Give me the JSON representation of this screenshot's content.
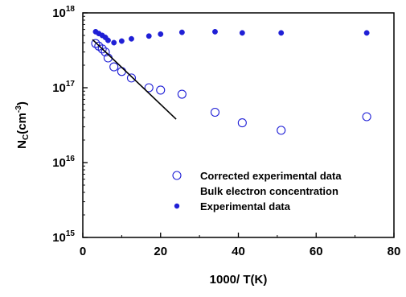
{
  "chart_data": {
    "type": "scatter",
    "title": "",
    "xlabel": "1000/ T(K)",
    "ylabel": {
      "base": "N",
      "sub": "C",
      "unit_prefix": "(cm",
      "unit_sup": "-3",
      "unit_suffix": ")"
    },
    "xlim": [
      0,
      80
    ],
    "ylim": [
      1000000000000000.0,
      1e+18
    ],
    "yscale": "log",
    "x_ticks": [
      0,
      20,
      40,
      60,
      80
    ],
    "y_ticks": [
      {
        "value": 1000000000000000.0,
        "base": "10",
        "exp": "15"
      },
      {
        "value": 1e+16,
        "base": "10",
        "exp": "16"
      },
      {
        "value": 1e+17,
        "base": "10",
        "exp": "17"
      },
      {
        "value": 1e+18,
        "base": "10",
        "exp": "18"
      }
    ],
    "grid": false,
    "legend_position": "bottom-right",
    "series": [
      {
        "name": "Corrected experimental data",
        "marker": "open-circle",
        "color": "#1f1fd6",
        "points": [
          [
            3.3,
            3.9e+17
          ],
          [
            4.1,
            3.6e+17
          ],
          [
            5.0,
            3.3e+17
          ],
          [
            5.8,
            3e+17
          ],
          [
            6.5,
            2.5e+17
          ],
          [
            8.0,
            1.9e+17
          ],
          [
            10.0,
            1.65e+17
          ],
          [
            12.5,
            1.35e+17
          ],
          [
            17.0,
            1e+17
          ],
          [
            20.0,
            9.3e+16
          ],
          [
            25.5,
            8.2e+16
          ],
          [
            34.0,
            4.7e+16
          ],
          [
            41.0,
            3.4e+16
          ],
          [
            51.0,
            2.7e+16
          ],
          [
            73.0,
            4.1e+16
          ]
        ]
      },
      {
        "name": "Bulk electron concentration",
        "marker": "line",
        "color": "#000000",
        "points": [
          [
            2.5,
            4.4e+17
          ],
          [
            24.0,
            3.8e+16
          ]
        ]
      },
      {
        "name": "Experimental data",
        "marker": "filled-circle",
        "color": "#1f1fd6",
        "points": [
          [
            3.3,
            5.6e+17
          ],
          [
            4.1,
            5.3e+17
          ],
          [
            5.0,
            5e+17
          ],
          [
            5.8,
            4.7e+17
          ],
          [
            6.5,
            4.3e+17
          ],
          [
            8.0,
            4e+17
          ],
          [
            10.0,
            4.2e+17
          ],
          [
            12.5,
            4.5e+17
          ],
          [
            17.0,
            4.9e+17
          ],
          [
            20.0,
            5.2e+17
          ],
          [
            25.5,
            5.5e+17
          ],
          [
            34.0,
            5.6e+17
          ],
          [
            41.0,
            5.4e+17
          ],
          [
            51.0,
            5.4e+17
          ],
          [
            73.0,
            5.4e+17
          ]
        ]
      }
    ]
  }
}
